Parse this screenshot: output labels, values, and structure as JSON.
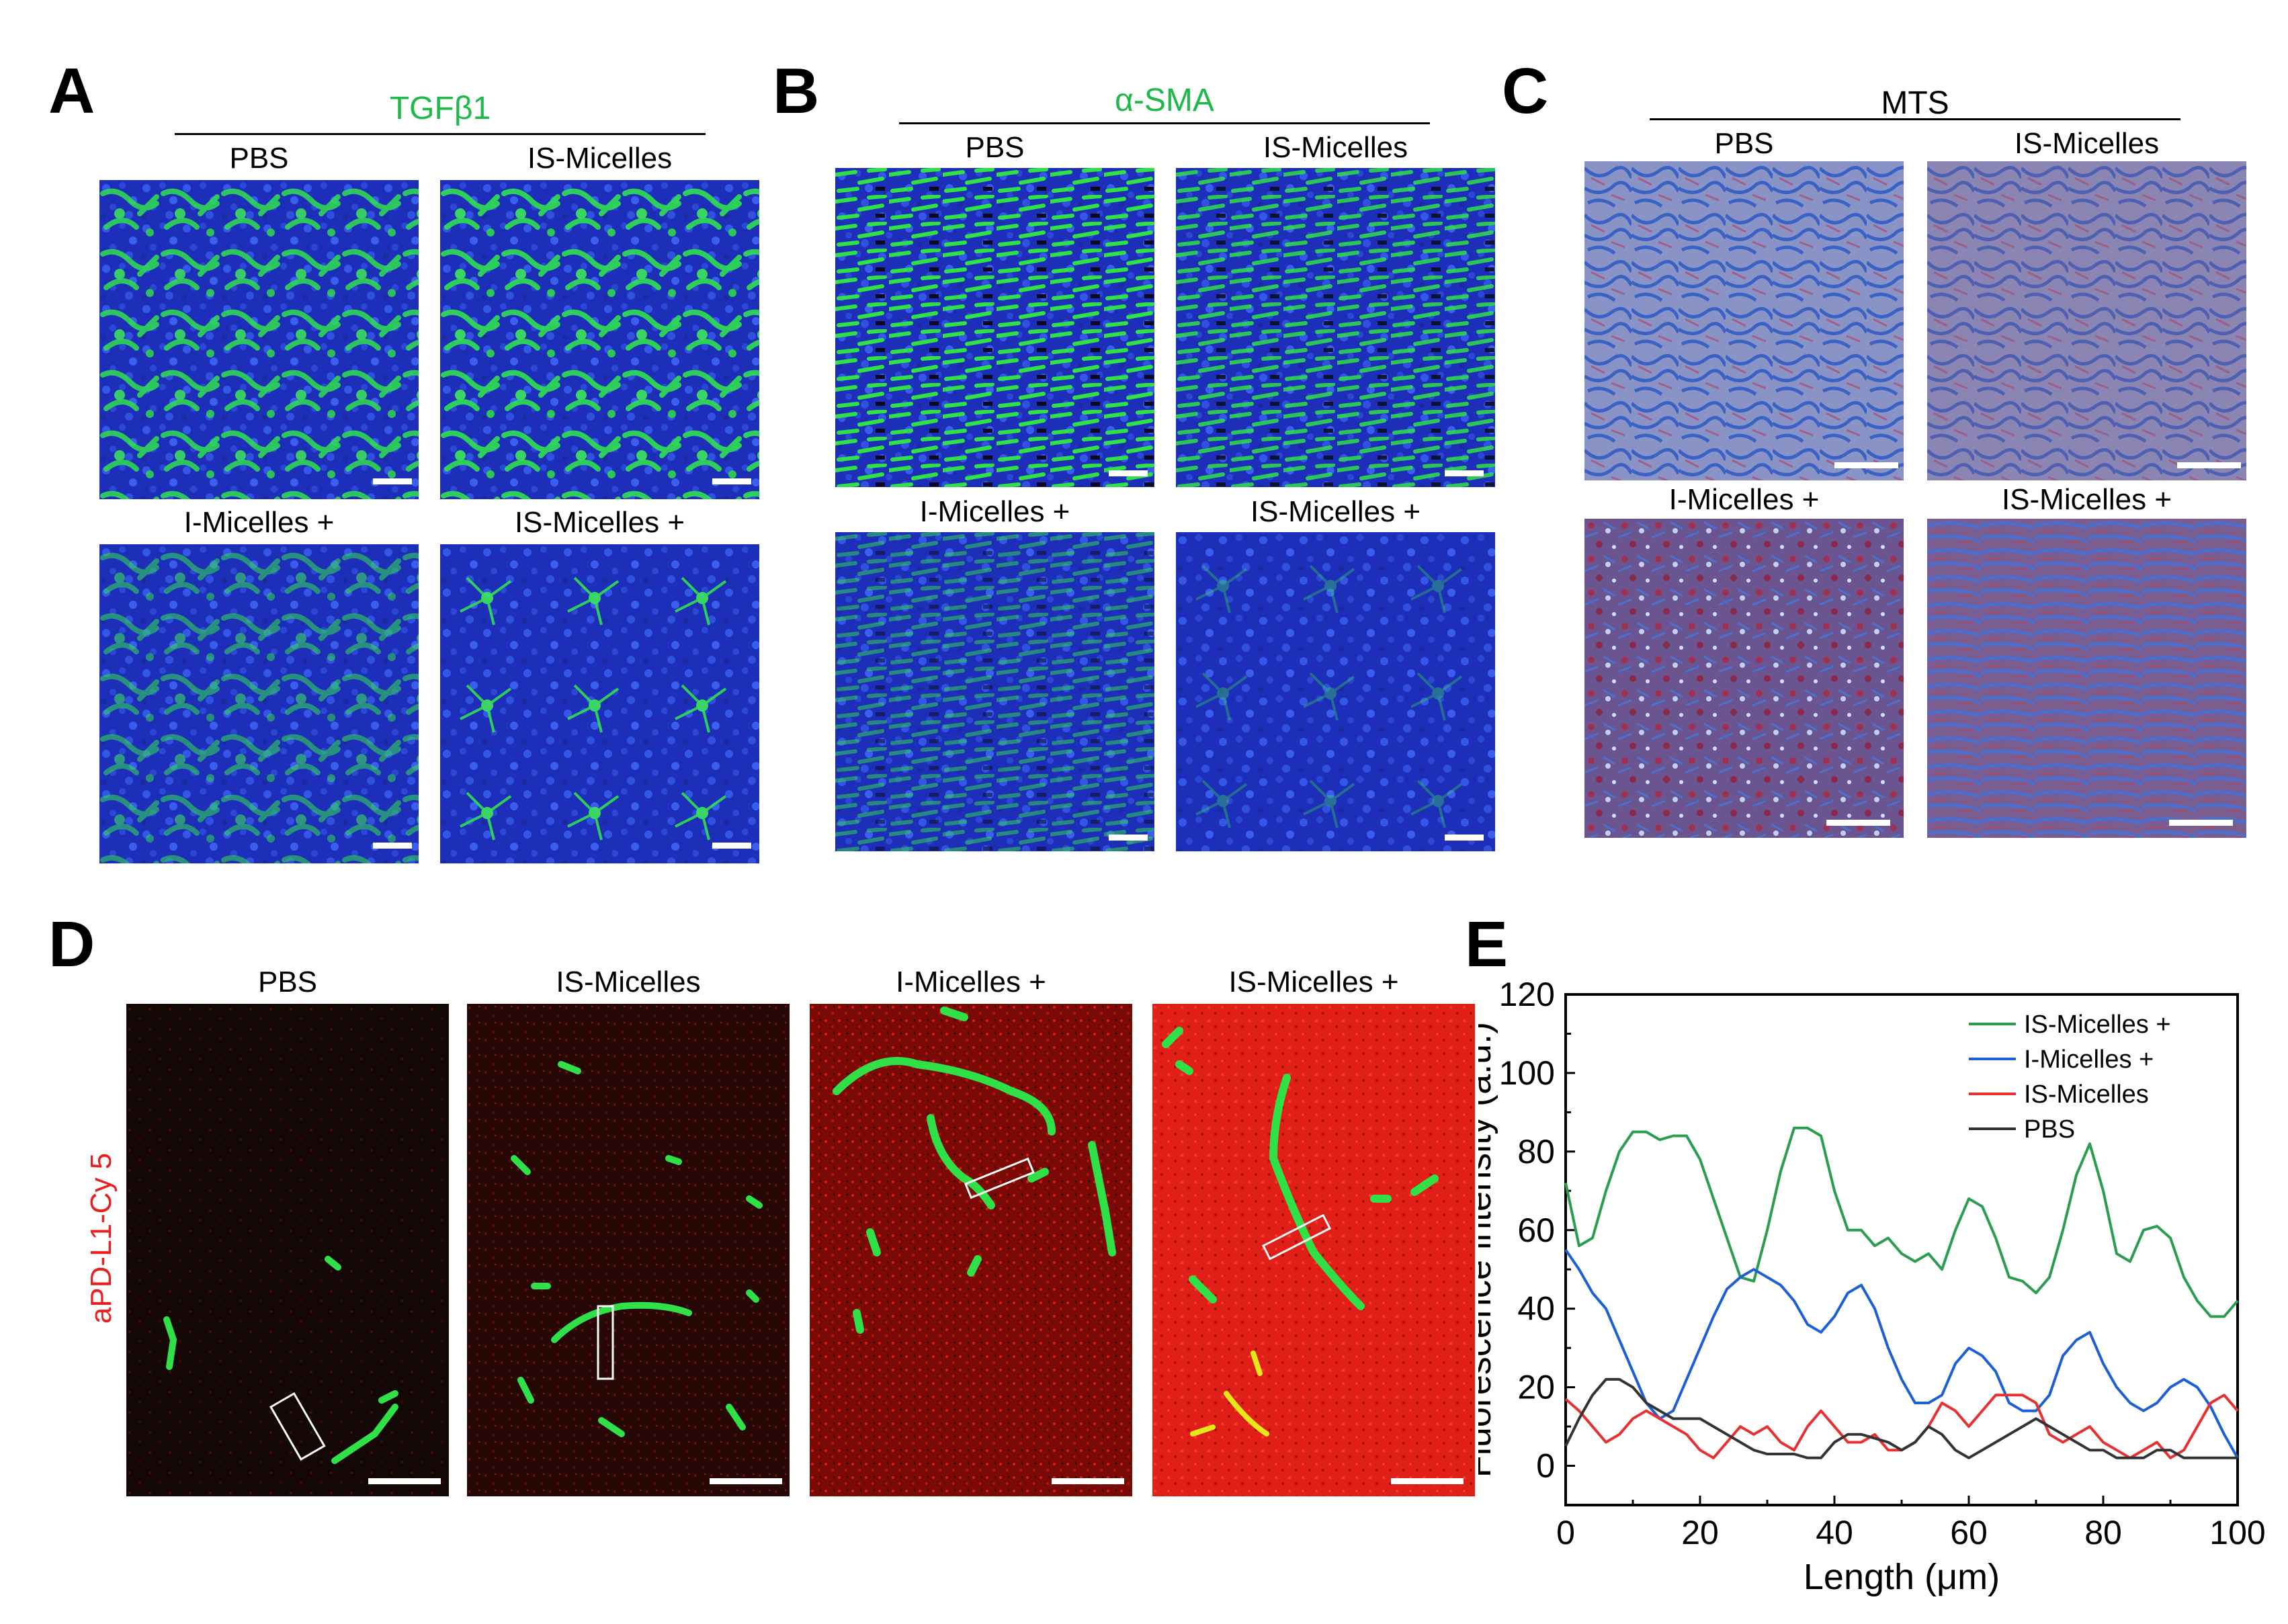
{
  "panels": {
    "A": {
      "letter": "A",
      "title": "TGFβ1",
      "title_color": "#1fb84a",
      "labels": [
        "PBS",
        "IS-Micelles",
        "I-Micelles +",
        "IS-Micelles +"
      ]
    },
    "B": {
      "letter": "B",
      "title": "α-SMA",
      "title_color": "#1fb84a",
      "labels": [
        "PBS",
        "IS-Micelles",
        "I-Micelles +",
        "IS-Micelles +"
      ]
    },
    "C": {
      "letter": "C",
      "title": "MTS",
      "title_color": "#000000",
      "labels": [
        "PBS",
        "IS-Micelles",
        "I-Micelles +",
        "IS-Micelles +"
      ]
    },
    "D": {
      "letter": "D",
      "side_label": "aPD-L1-Cy 5",
      "side_color": "#e8211e",
      "labels": [
        "PBS",
        "IS-Micelles",
        "I-Micelles +",
        "IS-Micelles +"
      ]
    },
    "E": {
      "letter": "E"
    }
  },
  "colors": {
    "dapi_blue": "#1f3fd6",
    "fitc_green": "#27e04a",
    "cy5_red": "#e01010",
    "trichrome_blue": "#5a7cc6",
    "trichrome_pink": "#9a6e9c"
  },
  "chart_data": {
    "type": "line",
    "xlabel": "Length (μm)",
    "ylabel": "Fluorescence intensity (a.u.)",
    "xlim": [
      0,
      100
    ],
    "ylim": [
      -10,
      120
    ],
    "xticks": [
      0,
      20,
      40,
      60,
      80,
      100
    ],
    "yticks": [
      0,
      20,
      40,
      60,
      80,
      100,
      120
    ],
    "legend_position": "top-right",
    "x": [
      0,
      2,
      4,
      6,
      8,
      10,
      12,
      14,
      16,
      18,
      20,
      22,
      24,
      26,
      28,
      30,
      32,
      34,
      36,
      38,
      40,
      42,
      44,
      46,
      48,
      50,
      52,
      54,
      56,
      58,
      60,
      62,
      64,
      66,
      68,
      70,
      72,
      74,
      76,
      78,
      80,
      82,
      84,
      86,
      88,
      90,
      92,
      94,
      96,
      98,
      100
    ],
    "series": [
      {
        "name": "IS-Micelles +",
        "color": "#2a9d4f",
        "values": [
          72,
          56,
          58,
          70,
          80,
          85,
          85,
          83,
          84,
          84,
          78,
          68,
          58,
          48,
          47,
          60,
          75,
          86,
          86,
          84,
          70,
          60,
          60,
          56,
          58,
          54,
          52,
          54,
          50,
          60,
          68,
          66,
          58,
          48,
          47,
          44,
          48,
          60,
          74,
          82,
          70,
          54,
          52,
          60,
          61,
          58,
          48,
          42,
          38,
          38,
          42
        ]
      },
      {
        "name": "I-Micelles +",
        "color": "#1d5fd4",
        "values": [
          55,
          50,
          44,
          40,
          32,
          24,
          16,
          12,
          14,
          22,
          30,
          38,
          45,
          48,
          50,
          48,
          46,
          42,
          36,
          34,
          38,
          44,
          46,
          40,
          30,
          22,
          16,
          16,
          18,
          26,
          30,
          28,
          24,
          16,
          14,
          14,
          18,
          28,
          32,
          34,
          26,
          20,
          16,
          14,
          16,
          20,
          22,
          20,
          15,
          8,
          2
        ]
      },
      {
        "name": "IS-Micelles",
        "color": "#e83030",
        "values": [
          17,
          14,
          10,
          6,
          8,
          12,
          14,
          12,
          10,
          8,
          4,
          2,
          6,
          10,
          8,
          10,
          6,
          4,
          10,
          14,
          10,
          6,
          6,
          8,
          4,
          4,
          6,
          10,
          16,
          14,
          10,
          14,
          18,
          18,
          18,
          16,
          8,
          6,
          8,
          10,
          6,
          4,
          2,
          4,
          6,
          2,
          4,
          10,
          16,
          18,
          14
        ]
      },
      {
        "name": "PBS",
        "color": "#333333",
        "values": [
          5,
          12,
          18,
          22,
          22,
          20,
          16,
          14,
          12,
          12,
          12,
          10,
          8,
          6,
          4,
          3,
          3,
          3,
          2,
          2,
          6,
          8,
          8,
          7,
          6,
          4,
          6,
          10,
          8,
          4,
          2,
          4,
          6,
          8,
          10,
          12,
          10,
          8,
          6,
          4,
          4,
          2,
          2,
          2,
          4,
          4,
          2,
          2,
          2,
          2,
          2
        ]
      }
    ]
  }
}
